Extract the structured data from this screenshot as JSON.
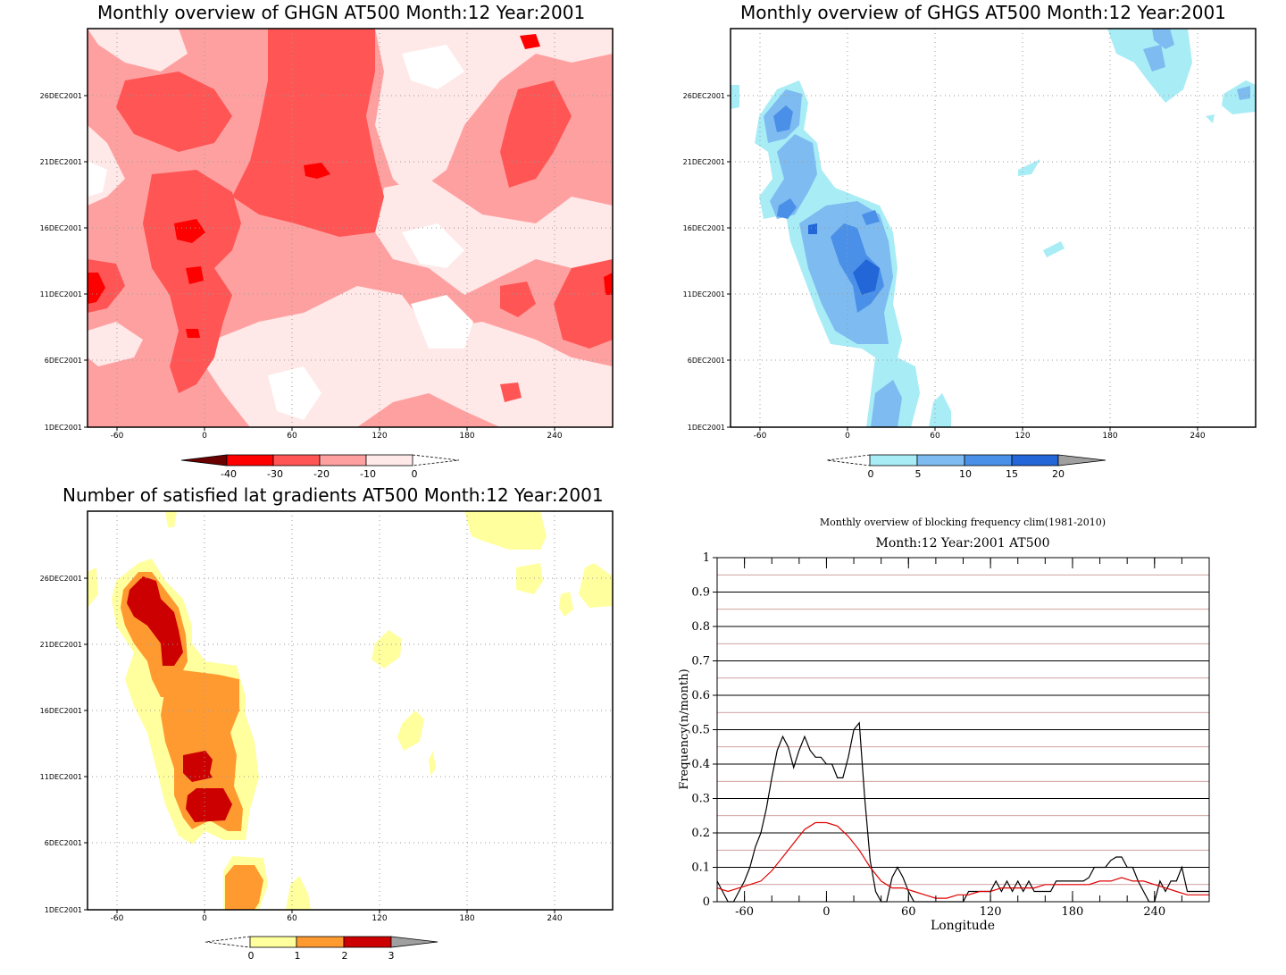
{
  "panels": {
    "ghgn": {
      "title": "Monthly overview of GHGN AT500 Month:12 Year:2001",
      "x_ticks": [
        "-60",
        "0",
        "60",
        "120",
        "180",
        "240"
      ],
      "y_ticks": [
        "1DEC2001",
        "6DEC2001",
        "11DEC2001",
        "16DEC2001",
        "21DEC2001",
        "26DEC2001"
      ],
      "colorbar": [
        "-40",
        "-30",
        "-20",
        "-10",
        "0"
      ],
      "colors": [
        "#6b0000",
        "#c00000",
        "#ff0000",
        "#ff5555",
        "#ffa0a0",
        "#ffe8e8"
      ]
    },
    "ghgs": {
      "title": "Monthly overview of GHGS AT500 Month:12 Year:2001",
      "x_ticks": [
        "-60",
        "0",
        "60",
        "120",
        "180",
        "240"
      ],
      "y_ticks": [
        "1DEC2001",
        "6DEC2001",
        "11DEC2001",
        "16DEC2001",
        "21DEC2001",
        "26DEC2001"
      ],
      "colorbar": [
        "0",
        "5",
        "10",
        "15",
        "20"
      ],
      "colors": [
        "#a8ecf6",
        "#7dbbf0",
        "#4a90e8",
        "#2266d8",
        "#a0a0a0"
      ]
    },
    "gradients": {
      "title": "Number of satisfied lat gradients AT500 Month:12 Year:2001",
      "x_ticks": [
        "-60",
        "0",
        "60",
        "120",
        "180",
        "240"
      ],
      "y_ticks": [
        "1DEC2001",
        "6DEC2001",
        "11DEC2001",
        "16DEC2001",
        "21DEC2001",
        "26DEC2001"
      ],
      "colorbar": [
        "0",
        "1",
        "2",
        "3"
      ],
      "colors": [
        "#ffff9e",
        "#ff9a30",
        "#cc0000",
        "#a0a0a0"
      ]
    }
  },
  "chart_data": [
    {
      "type": "heatmap",
      "title": "Monthly overview of GHGN AT500 Month:12 Year:2001",
      "xlim": [
        -80,
        280
      ],
      "x_ticks": [
        -60,
        0,
        60,
        120,
        180,
        240
      ],
      "y_ticks": [
        "1DEC2001",
        "6DEC2001",
        "11DEC2001",
        "16DEC2001",
        "21DEC2001",
        "26DEC2001"
      ],
      "levels": [
        -40,
        -30,
        -20,
        -10,
        0
      ]
    },
    {
      "type": "heatmap",
      "title": "Monthly overview of GHGS AT500 Month:12 Year:2001",
      "xlim": [
        -80,
        280
      ],
      "x_ticks": [
        -60,
        0,
        60,
        120,
        180,
        240
      ],
      "y_ticks": [
        "1DEC2001",
        "6DEC2001",
        "11DEC2001",
        "16DEC2001",
        "21DEC2001",
        "26DEC2001"
      ],
      "levels": [
        0,
        5,
        10,
        15,
        20
      ]
    },
    {
      "type": "heatmap",
      "title": "Number of satisfied lat gradients AT500 Month:12 Year:2001",
      "xlim": [
        -80,
        280
      ],
      "x_ticks": [
        -60,
        0,
        60,
        120,
        180,
        240
      ],
      "y_ticks": [
        "1DEC2001",
        "6DEC2001",
        "11DEC2001",
        "16DEC2001",
        "21DEC2001",
        "26DEC2001"
      ],
      "levels": [
        0,
        1,
        2,
        3
      ]
    },
    {
      "type": "line",
      "title": "Monthly overview of blocking frequency clim(1981-2010)",
      "subtitle": "Month:12 Year:2001  AT500",
      "xlabel": "Longitude",
      "ylabel": "Frequency(n/month)",
      "xlim": [
        -80,
        280
      ],
      "ylim": [
        0,
        1
      ],
      "x_ticks": [
        -60,
        0,
        60,
        120,
        180,
        240
      ],
      "y_ticks": [
        "0",
        "0.1",
        "0.2",
        "0.3",
        "0.4",
        "0.5",
        "0.6",
        "0.7",
        "0.8",
        "0.9",
        "1"
      ],
      "grid": true,
      "series": [
        {
          "color": "#000000",
          "x": [
            -80,
            -76,
            -72,
            -68,
            -64,
            -60,
            -56,
            -52,
            -48,
            -44,
            -40,
            -36,
            -32,
            -28,
            -24,
            -20,
            -16,
            -12,
            -8,
            -4,
            0,
            4,
            8,
            12,
            16,
            20,
            24,
            28,
            32,
            36,
            40,
            44,
            48,
            52,
            56,
            60,
            64,
            68,
            72,
            76,
            80,
            84,
            88,
            92,
            96,
            100,
            104,
            108,
            112,
            116,
            120,
            124,
            128,
            132,
            136,
            140,
            144,
            148,
            152,
            156,
            160,
            164,
            168,
            172,
            176,
            180,
            184,
            188,
            192,
            196,
            200,
            204,
            208,
            212,
            216,
            220,
            224,
            228,
            232,
            236,
            240,
            244,
            248,
            252,
            256,
            260,
            264,
            268,
            272,
            276,
            280
          ],
          "values": [
            0.06,
            0.03,
            0.0,
            0.0,
            0.03,
            0.06,
            0.1,
            0.16,
            0.2,
            0.27,
            0.36,
            0.44,
            0.48,
            0.45,
            0.39,
            0.44,
            0.48,
            0.44,
            0.42,
            0.42,
            0.4,
            0.4,
            0.36,
            0.36,
            0.42,
            0.5,
            0.52,
            0.3,
            0.12,
            0.03,
            0.0,
            0.0,
            0.07,
            0.1,
            0.07,
            0.03,
            0.0,
            0.0,
            0.0,
            0.0,
            0.0,
            0.0,
            0.0,
            0.0,
            0.0,
            0.0,
            0.03,
            0.03,
            0.03,
            0.03,
            0.03,
            0.06,
            0.03,
            0.06,
            0.03,
            0.06,
            0.03,
            0.06,
            0.03,
            0.03,
            0.03,
            0.03,
            0.06,
            0.06,
            0.06,
            0.06,
            0.06,
            0.06,
            0.07,
            0.1,
            0.1,
            0.1,
            0.12,
            0.13,
            0.13,
            0.1,
            0.1,
            0.06,
            0.03,
            0.0,
            0.0,
            0.06,
            0.03,
            0.06,
            0.06,
            0.1,
            0.03,
            0.03,
            0.03,
            0.03,
            0.03
          ]
        },
        {
          "color": "#e00000",
          "x": [
            -80,
            -72,
            -64,
            -56,
            -48,
            -40,
            -32,
            -24,
            -16,
            -8,
            0,
            8,
            16,
            24,
            32,
            40,
            48,
            56,
            64,
            72,
            80,
            88,
            96,
            104,
            112,
            120,
            128,
            136,
            144,
            152,
            160,
            168,
            176,
            184,
            192,
            200,
            208,
            216,
            224,
            232,
            240,
            248,
            256,
            264,
            272,
            280
          ],
          "values": [
            0.04,
            0.03,
            0.04,
            0.05,
            0.06,
            0.09,
            0.13,
            0.17,
            0.21,
            0.23,
            0.23,
            0.22,
            0.19,
            0.15,
            0.1,
            0.06,
            0.04,
            0.04,
            0.03,
            0.02,
            0.01,
            0.01,
            0.02,
            0.02,
            0.03,
            0.03,
            0.04,
            0.04,
            0.04,
            0.04,
            0.05,
            0.05,
            0.05,
            0.05,
            0.05,
            0.06,
            0.06,
            0.07,
            0.06,
            0.06,
            0.05,
            0.04,
            0.03,
            0.02,
            0.02,
            0.02
          ]
        }
      ]
    }
  ]
}
